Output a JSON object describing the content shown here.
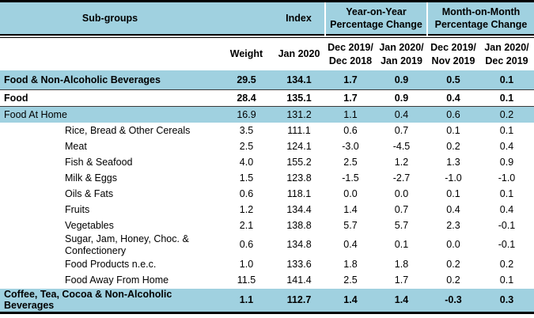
{
  "colors": {
    "shade_blue": "#a0d1e0",
    "rule_dark": "#3a3a3a",
    "border_black": "#000000"
  },
  "table": {
    "header": {
      "subgroups": "Sub-groups",
      "index": "Index",
      "yoy_group": "Year-on-Year\nPercentage Change",
      "mom_group": "Month-on-Month\nPercentage Change",
      "weight": "Weight",
      "index_period": "Jan 2020",
      "change_periods": [
        "Dec 2019/\nDec 2018",
        "Jan 2020/\nJan 2019",
        "Dec 2019/\nNov 2019",
        "Jan 2020/\nDec 2019"
      ]
    },
    "rows": [
      {
        "name": "Food & Non-Alcoholic Beverages",
        "values": [
          "29.5",
          "134.1",
          "1.7",
          "0.9",
          "0.5",
          "0.1"
        ],
        "bold": true,
        "shaded": true,
        "indent": false,
        "rule_below": true,
        "tall": true
      },
      {
        "name": "Food",
        "values": [
          "28.4",
          "135.1",
          "1.7",
          "0.9",
          "0.4",
          "0.1"
        ],
        "bold": true,
        "shaded": false,
        "indent": false,
        "rule_below": true,
        "tall": false
      },
      {
        "name": "Food At Home",
        "values": [
          "16.9",
          "131.2",
          "1.1",
          "0.4",
          "0.6",
          "0.2"
        ],
        "bold": false,
        "shaded": true,
        "indent": false,
        "rule_below": false,
        "tall": false
      },
      {
        "name": "Rice, Bread & Other Cereals",
        "values": [
          "3.5",
          "111.1",
          "0.6",
          "0.7",
          "0.1",
          "0.1"
        ],
        "bold": false,
        "shaded": false,
        "indent": true,
        "rule_below": false,
        "tall": false
      },
      {
        "name": "Meat",
        "values": [
          "2.5",
          "124.1",
          "-3.0",
          "-4.5",
          "0.2",
          "0.4"
        ],
        "bold": false,
        "shaded": false,
        "indent": true,
        "rule_below": false,
        "tall": false
      },
      {
        "name": "Fish & Seafood",
        "values": [
          "4.0",
          "155.2",
          "2.5",
          "1.2",
          "1.3",
          "0.9"
        ],
        "bold": false,
        "shaded": false,
        "indent": true,
        "rule_below": false,
        "tall": false
      },
      {
        "name": "Milk & Eggs",
        "values": [
          "1.5",
          "123.8",
          "-1.5",
          "-2.7",
          "-1.0",
          "-1.0"
        ],
        "bold": false,
        "shaded": false,
        "indent": true,
        "rule_below": false,
        "tall": false
      },
      {
        "name": "Oils & Fats",
        "values": [
          "0.6",
          "118.1",
          "0.0",
          "0.0",
          "0.1",
          "0.1"
        ],
        "bold": false,
        "shaded": false,
        "indent": true,
        "rule_below": false,
        "tall": false
      },
      {
        "name": "Fruits",
        "values": [
          "1.2",
          "134.4",
          "1.4",
          "0.7",
          "0.4",
          "0.4"
        ],
        "bold": false,
        "shaded": false,
        "indent": true,
        "rule_below": false,
        "tall": false
      },
      {
        "name": "Vegetables",
        "values": [
          "2.1",
          "138.8",
          "5.7",
          "5.7",
          "2.3",
          "-0.1"
        ],
        "bold": false,
        "shaded": false,
        "indent": true,
        "rule_below": false,
        "tall": false
      },
      {
        "name": "Sugar, Jam, Honey, Choc. & Confectionery",
        "values": [
          "0.6",
          "134.8",
          "0.4",
          "0.1",
          "0.0",
          "-0.1"
        ],
        "bold": false,
        "shaded": false,
        "indent": true,
        "rule_below": false,
        "tall": false
      },
      {
        "name": "Food Products n.e.c.",
        "values": [
          "1.0",
          "133.6",
          "1.8",
          "1.8",
          "0.2",
          "0.2"
        ],
        "bold": false,
        "shaded": false,
        "indent": true,
        "rule_below": false,
        "tall": false
      },
      {
        "name": "Food Away From Home",
        "values": [
          "11.5",
          "141.4",
          "2.5",
          "1.7",
          "0.2",
          "0.1"
        ],
        "bold": false,
        "shaded": false,
        "indent": true,
        "rule_below": false,
        "tall": false
      },
      {
        "name": "Coffee, Tea, Cocoa & Non-Alcoholic Beverages",
        "values": [
          "1.1",
          "112.7",
          "1.4",
          "1.4",
          "-0.3",
          "0.3"
        ],
        "bold": true,
        "shaded": true,
        "indent": false,
        "rule_below": false,
        "tall": true
      }
    ]
  }
}
